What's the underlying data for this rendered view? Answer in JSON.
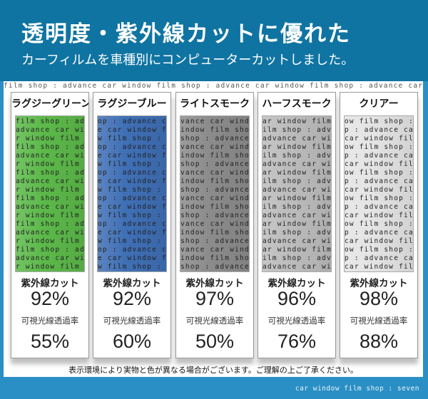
{
  "header": {
    "title": "透明度・紫外線カットに優れた",
    "subtitle": "カーフィルムを車種別にコンピューターカットしました。"
  },
  "background_pattern": "film shop : advance car window ",
  "labels": {
    "uv_cut": "紫外線カット",
    "visible_light": "可視光線透過率"
  },
  "films": [
    {
      "name": "ラグジーグリーン",
      "color": "#5cb94a",
      "uv_cut": "92%",
      "visible_light": "55%"
    },
    {
      "name": "ラグジーブルー",
      "color": "#3f6fb5",
      "uv_cut": "92%",
      "visible_light": "60%"
    },
    {
      "name": "ライトスモーク",
      "color": "#8c8c8c",
      "uv_cut": "97%",
      "visible_light": "50%"
    },
    {
      "name": "ハーフスモーク",
      "color": "#bcbcbc",
      "uv_cut": "96%",
      "visible_light": "76%"
    },
    {
      "name": "クリアー",
      "color": "#e4e4e4",
      "uv_cut": "98%",
      "visible_light": "88%"
    }
  ],
  "note": "表示環境により実物と色が異なる場合がございます。ご理解の上ご了承ください。",
  "footer": "car window film shop : seven",
  "colors": {
    "header_blue": "#0f74a2",
    "footer_blue": "#2a8fc4"
  }
}
